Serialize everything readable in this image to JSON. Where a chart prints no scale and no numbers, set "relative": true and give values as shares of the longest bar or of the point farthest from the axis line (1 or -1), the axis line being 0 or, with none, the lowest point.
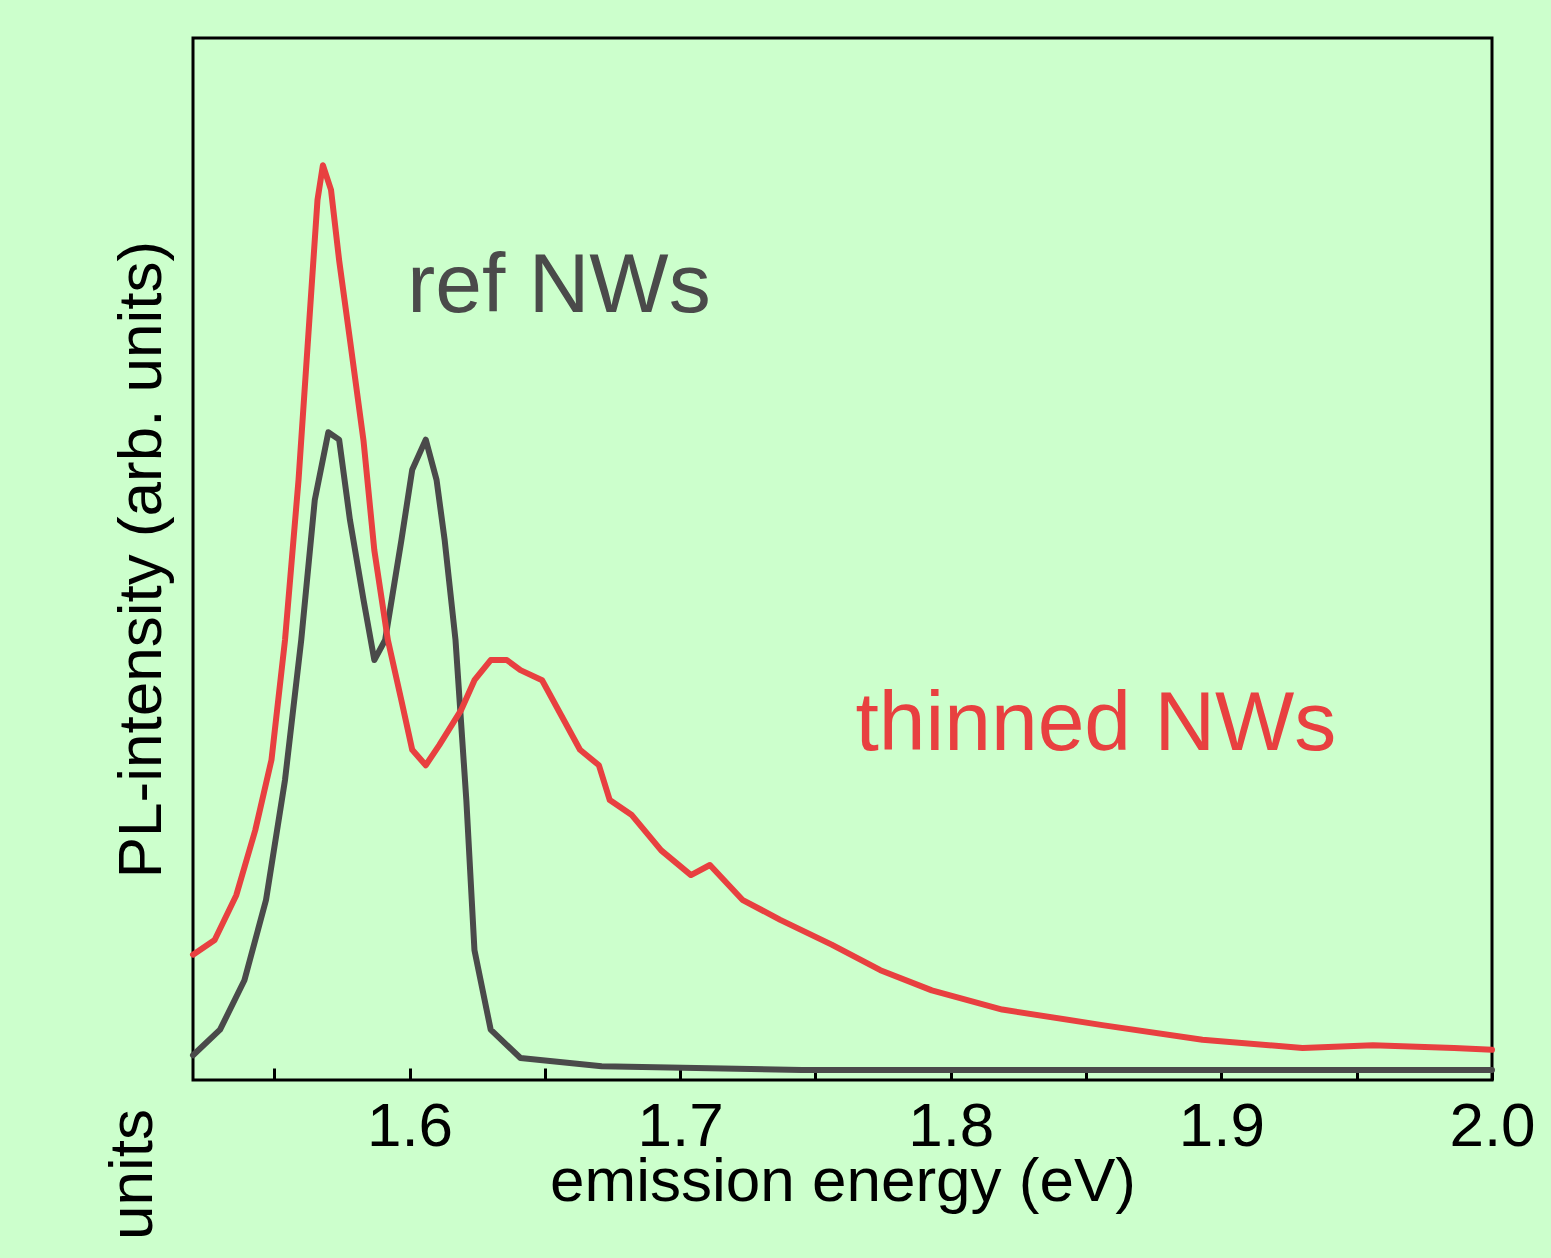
{
  "chart_data": {
    "type": "line",
    "relative": true,
    "xlabel": "emission energy (eV)",
    "ylabel": "PL-intensity (arb. units)",
    "xlim": [
      1.52,
      2.0
    ],
    "xticks": [
      {
        "value": 1.55,
        "label": null
      },
      1.6,
      {
        "value": 1.65,
        "label": null
      },
      1.7,
      {
        "value": 1.75,
        "label": null
      },
      1.8,
      {
        "value": 1.85,
        "label": null
      },
      1.9,
      {
        "value": 1.95,
        "label": null
      },
      {
        "value": 2.0,
        "label": "2.0"
      }
    ],
    "line_style": "solid",
    "annotations": [
      "units"
    ],
    "series": [
      {
        "name": "ref NWs",
        "color": "#4a4a4a",
        "x": [
          1.52,
          1.53,
          1.539,
          1.547,
          1.554,
          1.56,
          1.565,
          1.57,
          1.574,
          1.578,
          1.583,
          1.587,
          1.591,
          1.597,
          1.601,
          1.606,
          1.61,
          1.613,
          1.617,
          1.621,
          1.624,
          1.63,
          1.641,
          1.671,
          1.745,
          2.0
        ],
        "values": [
          0.027,
          0.055,
          0.109,
          0.197,
          0.328,
          0.481,
          0.634,
          0.708,
          0.7,
          0.612,
          0.525,
          0.459,
          0.481,
          0.59,
          0.667,
          0.7,
          0.656,
          0.59,
          0.481,
          0.306,
          0.142,
          0.055,
          0.024,
          0.015,
          0.011,
          0.011
        ]
      },
      {
        "name": "thinned NWs",
        "color": "#e84040",
        "x": [
          1.52,
          1.528,
          1.536,
          1.543,
          1.549,
          1.554,
          1.559,
          1.563,
          1.566,
          1.568,
          1.571,
          1.574,
          1.578,
          1.583,
          1.587,
          1.592,
          1.597,
          1.601,
          1.606,
          1.611,
          1.619,
          1.624,
          1.63,
          1.636,
          1.641,
          1.649,
          1.656,
          1.663,
          1.67,
          1.674,
          1.682,
          1.693,
          1.704,
          1.711,
          1.723,
          1.737,
          1.756,
          1.774,
          1.793,
          1.819,
          1.856,
          1.893,
          1.93,
          1.956,
          1.986,
          2.0
        ],
        "values": [
          0.137,
          0.153,
          0.202,
          0.273,
          0.35,
          0.481,
          0.656,
          0.831,
          0.962,
          1.0,
          0.973,
          0.896,
          0.809,
          0.699,
          0.579,
          0.481,
          0.415,
          0.361,
          0.344,
          0.366,
          0.404,
          0.437,
          0.459,
          0.459,
          0.448,
          0.437,
          0.399,
          0.361,
          0.344,
          0.306,
          0.29,
          0.251,
          0.224,
          0.235,
          0.197,
          0.175,
          0.148,
          0.12,
          0.098,
          0.077,
          0.06,
          0.044,
          0.035,
          0.038,
          0.035,
          0.033
        ]
      }
    ]
  }
}
